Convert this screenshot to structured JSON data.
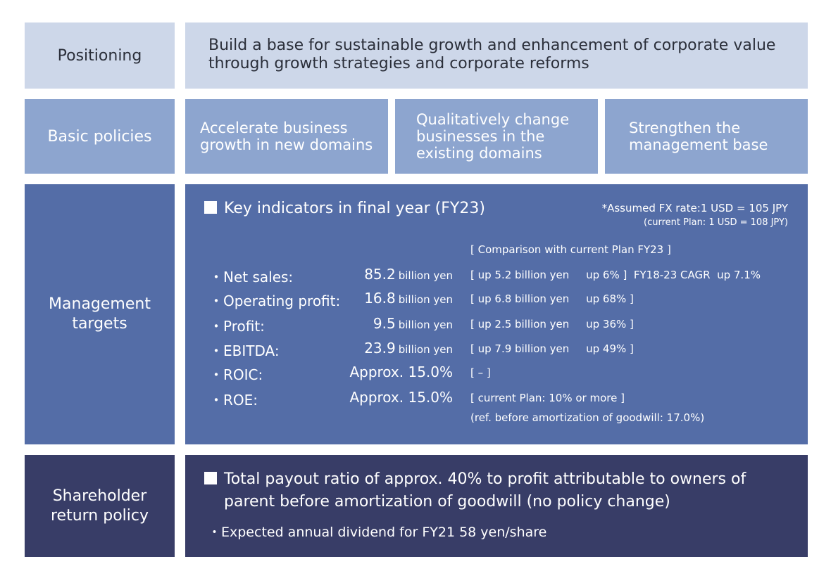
{
  "positioning": {
    "label": "Positioning",
    "line1": "Build a base for sustainable growth and enhancement of corporate value",
    "line2": "through growth strategies and corporate reforms"
  },
  "basic_policies": {
    "label": "Basic policies",
    "items": [
      {
        "line1": "Accelerate business",
        "line2": "growth in new domains",
        "line3": ""
      },
      {
        "line1": "Qualitatively change",
        "line2": "businesses in the",
        "line3": "existing domains"
      },
      {
        "line1": "Strengthen the",
        "line2": "management base",
        "line3": ""
      }
    ]
  },
  "management_targets": {
    "label_line1": "Management",
    "label_line2": "targets",
    "heading": "Key indicators in final year (FY23)",
    "fx_note_line1": "*Assumed FX rate:1 USD = 105 JPY",
    "fx_note_line2": "(current Plan: 1 USD = 108 JPY)",
    "comparison_header": "[ Comparison with current Plan  FY23 ]",
    "indicators": [
      {
        "name": "・Net sales:",
        "value": "85.2",
        "unit": "billion yen",
        "comparison": "[ up 5.2 billion yen     up 6% ]  FY18-23 CAGR  up 7.1%"
      },
      {
        "name": "・Operating profit:",
        "value": "16.8",
        "unit": "billion yen",
        "comparison": "[ up 6.8 billion yen     up 68% ]"
      },
      {
        "name": "・Profit:",
        "value": "9.5",
        "unit": "billion yen",
        "comparison": "[ up 2.5 billion yen     up 36% ]"
      },
      {
        "name": "・EBITDA:",
        "value": "23.9",
        "unit": "billion yen",
        "comparison": "[ up 7.9 billion yen     up 49% ]"
      },
      {
        "name": "・ROIC:",
        "value": "Approx. 15.0%",
        "unit": "",
        "comparison": "[ – ]"
      },
      {
        "name": "・ROE:",
        "value": "Approx. 15.0%",
        "unit": "",
        "comparison": "[ current Plan: 10% or more ]"
      }
    ],
    "roe_note": "(ref. before amortization of goodwill: 17.0%)"
  },
  "shareholder_return": {
    "label_line1": "Shareholder",
    "label_line2": "return policy",
    "line1": "Total payout ratio of approx. 40% to profit attributable to owners of",
    "line2": "parent before amortization of goodwill (no policy change)",
    "bullet": "・Expected annual dividend for FY21 58 yen/share"
  }
}
